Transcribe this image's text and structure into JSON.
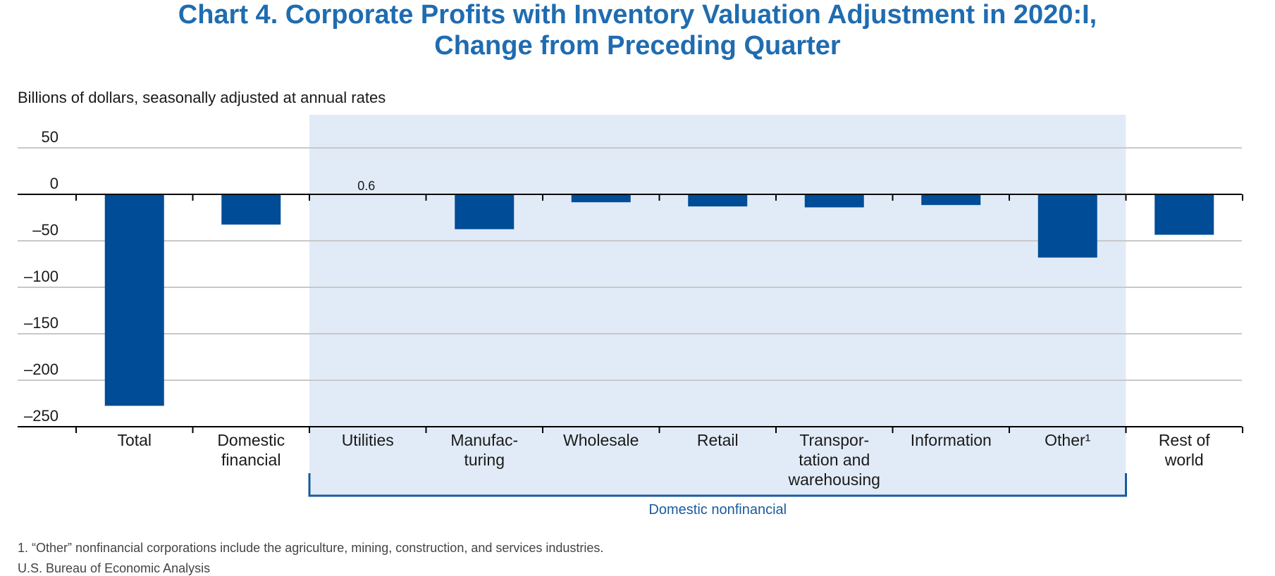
{
  "header": {
    "title_line1": "Chart 4. Corporate Profits with Inventory Valuation Adjustment in 2020:I,",
    "title_line2": "Change from Preceding Quarter",
    "unit_note": "Billions of dollars, seasonally adjusted at annual rates"
  },
  "footer": {
    "footnote": "1. “Other” nonfinancial corporations include the agriculture, mining, construction, and services industries.",
    "source": "U.S. Bureau of Economic Analysis"
  },
  "colors": {
    "title": "#1f6cb0",
    "bar": "#004c97",
    "shade": "#e1ebf7",
    "bracket": "#1a5a9e",
    "grid": "#c8c8c8",
    "axis": "#000000"
  },
  "chart_data": {
    "type": "bar",
    "title": "Chart 4. Corporate Profits with Inventory Valuation Adjustment in 2020:I, Change from Preceding Quarter",
    "ylabel": "Billions of dollars, seasonally adjusted at annual rates",
    "ylim": [
      -250,
      50
    ],
    "yticks": [
      50,
      0,
      -50,
      -100,
      -150,
      -200,
      -250
    ],
    "ytick_labels": [
      "50",
      "0",
      "–50",
      "–100",
      "–150",
      "–200",
      "–250"
    ],
    "grid": true,
    "categories": [
      [
        "Total"
      ],
      [
        "Domestic",
        "financial"
      ],
      [
        "Utilities"
      ],
      [
        "Manufac-",
        "turing"
      ],
      [
        "Wholesale"
      ],
      [
        "Retail"
      ],
      [
        "Transpor-",
        "tation and",
        "warehousing"
      ],
      [
        "Information"
      ],
      [
        "Other¹"
      ],
      [
        "Rest of",
        "world"
      ]
    ],
    "values": [
      -227.5,
      -32.5,
      0.6,
      -37.5,
      -8.5,
      -13,
      -14,
      -11.5,
      -68,
      -43.5
    ],
    "data_labels": [
      null,
      null,
      "0.6",
      null,
      null,
      null,
      null,
      null,
      null,
      null
    ],
    "group": {
      "label": "Domestic nonfinancial",
      "start_index": 2,
      "end_index": 8
    }
  }
}
